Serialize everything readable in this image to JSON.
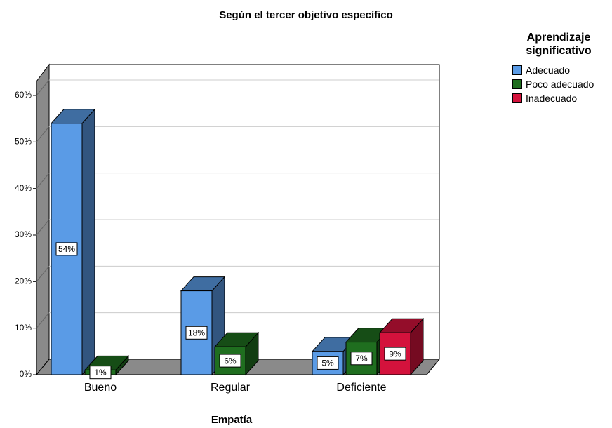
{
  "chart_data": {
    "type": "bar3d",
    "title": "Según el tercer objetivo específico",
    "x_label": "Empatía",
    "legend_title": "Aprendizaje significativo",
    "legend_position": "right",
    "categories": [
      "Bueno",
      "Regular",
      "Deficiente"
    ],
    "series": [
      {
        "name": "Adecuado",
        "color": "#5a9be6",
        "values": [
          54,
          18,
          5
        ],
        "value_labels": [
          "54%",
          "18%",
          "5%"
        ]
      },
      {
        "name": "Poco adecuado",
        "color": "#1f6e1f",
        "values": [
          1,
          6,
          7
        ],
        "value_labels": [
          "1%",
          "6%",
          "7%"
        ]
      },
      {
        "name": "Inadecuado",
        "color": "#d4123c",
        "values": [
          null,
          null,
          9
        ],
        "value_labels": [
          null,
          null,
          "9%"
        ]
      }
    ],
    "ylim": [
      0,
      60
    ],
    "yticks": [
      {
        "value": 0,
        "label": "0%"
      },
      {
        "value": 10,
        "label": "10%"
      },
      {
        "value": 20,
        "label": "20%"
      },
      {
        "value": 30,
        "label": "30%"
      },
      {
        "value": 40,
        "label": "40%"
      },
      {
        "value": 50,
        "label": "50%"
      },
      {
        "value": 60,
        "label": "60%"
      }
    ],
    "grid": true
  }
}
